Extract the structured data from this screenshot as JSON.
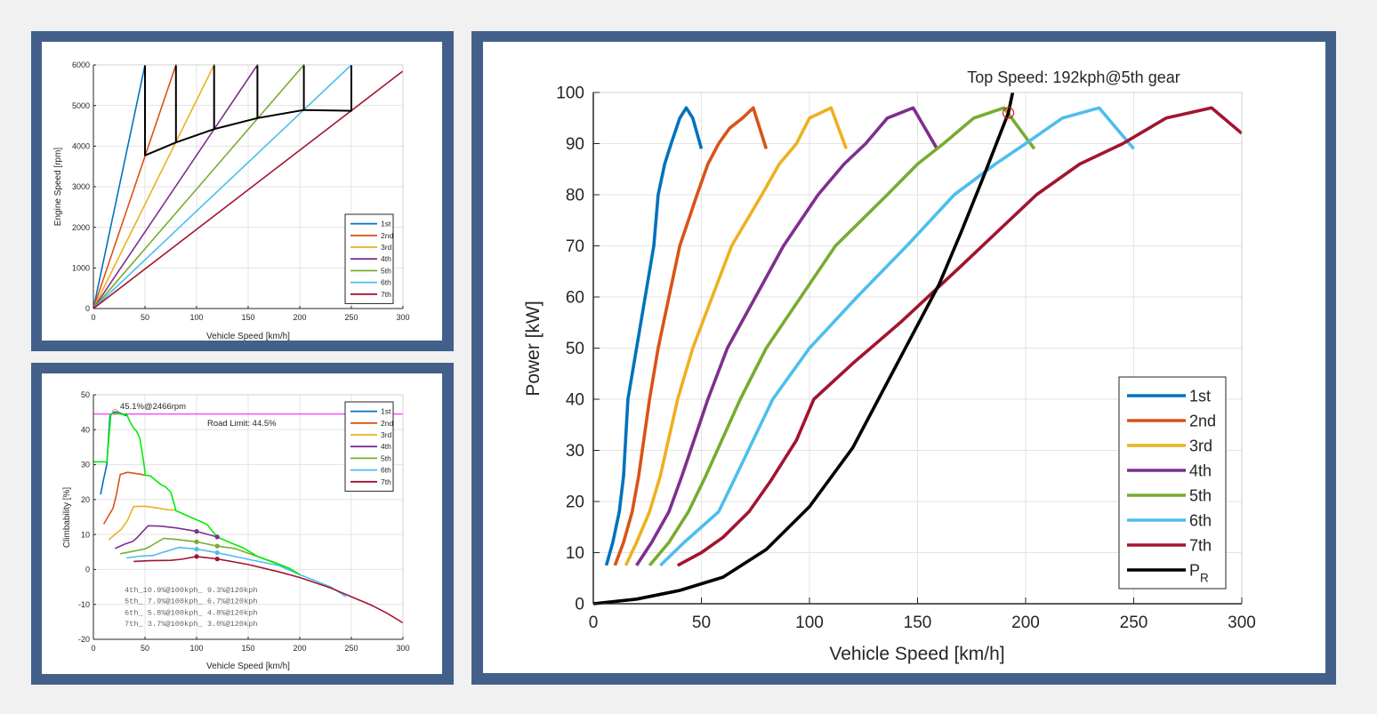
{
  "colors": {
    "1st": "#0072bd",
    "2nd": "#d95319",
    "3rd": "#edb120",
    "4th": "#7e2f8e",
    "5th": "#77ac30",
    "6th": "#4dbeee",
    "7th": "#a2142f",
    "PR": "#000000",
    "envelope": "#00ee00",
    "road_limit": "#ff33ff",
    "marker": "#ff0000"
  },
  "chart_data": [
    {
      "id": "engine-speed",
      "type": "line",
      "title": "",
      "xlabel": "Vehicle Speed [km/h]",
      "ylabel": "Engine Speed [rpm]",
      "xlim": [
        0,
        300
      ],
      "ylim": [
        0,
        6000
      ],
      "xticks": [
        0,
        50,
        100,
        150,
        200,
        250,
        300
      ],
      "yticks": [
        0,
        1000,
        2000,
        3000,
        4000,
        5000,
        6000
      ],
      "xtick_labels": [
        "0",
        "50",
        "100",
        "150",
        "200",
        "250",
        "300"
      ],
      "ytick_labels": [
        "0",
        "1000",
        "2000",
        "3000",
        "4000",
        "5000",
        "6000"
      ],
      "grid": true,
      "legend": {
        "placement": "bottom-right",
        "entries": [
          "1st",
          "2nd",
          "3rd",
          "4th",
          "5th",
          "6th",
          "7th"
        ]
      },
      "series": [
        {
          "name": "1st",
          "x": [
            0,
            50
          ],
          "y": [
            0,
            6000
          ]
        },
        {
          "name": "2nd",
          "x": [
            0,
            80
          ],
          "y": [
            0,
            6000
          ]
        },
        {
          "name": "3rd",
          "x": [
            0,
            117
          ],
          "y": [
            0,
            6000
          ]
        },
        {
          "name": "4th",
          "x": [
            0,
            159
          ],
          "y": [
            0,
            6000
          ]
        },
        {
          "name": "5th",
          "x": [
            0,
            204
          ],
          "y": [
            0,
            6000
          ]
        },
        {
          "name": "6th",
          "x": [
            0,
            250
          ],
          "y": [
            0,
            6000
          ]
        },
        {
          "name": "7th",
          "x": [
            0,
            300
          ],
          "y": [
            0,
            5850
          ]
        }
      ],
      "shift_path": {
        "name": "shift",
        "x": [
          50,
          50,
          50,
          80,
          80,
          80,
          117,
          117,
          117,
          159,
          159,
          159,
          204,
          204,
          204,
          250,
          250
        ],
        "y": [
          6000,
          3770,
          3770,
          4090,
          6000,
          4090,
          4420,
          6000,
          4420,
          4690,
          6000,
          4690,
          4890,
          6000,
          4890,
          4870,
          6000
        ]
      }
    },
    {
      "id": "climbability",
      "type": "line",
      "title": "",
      "xlabel": "Vehicle Speed [km/h]",
      "ylabel": "Climbability [%]",
      "xlim": [
        0,
        300
      ],
      "ylim": [
        -20,
        50
      ],
      "xticks": [
        0,
        50,
        100,
        150,
        200,
        250,
        300
      ],
      "yticks": [
        -20,
        -10,
        0,
        10,
        20,
        30,
        40,
        50
      ],
      "xtick_labels": [
        "0",
        "50",
        "100",
        "150",
        "200",
        "250",
        "300"
      ],
      "ytick_labels": [
        "-20",
        "-10",
        "0",
        "10",
        "20",
        "30",
        "40",
        "50"
      ],
      "grid": true,
      "legend": {
        "placement": "top-right",
        "entries": [
          "1st",
          "2nd",
          "3rd",
          "4th",
          "5th",
          "6th",
          "7th"
        ]
      },
      "road_limit": {
        "value": 44.5,
        "label": "Road Limit: 44.5%"
      },
      "peak": {
        "x": 21,
        "y": 45.1,
        "label": "45.1%@2466rpm"
      },
      "series": [
        {
          "name": "1st",
          "x": [
            7,
            10,
            13,
            16,
            20,
            24,
            28,
            32
          ],
          "y": [
            21.5,
            26,
            30,
            44,
            45.1,
            45,
            44.5,
            44
          ]
        },
        {
          "name": "2nd",
          "x": [
            10,
            15,
            19,
            22,
            26,
            33,
            45,
            50
          ],
          "y": [
            13,
            15.5,
            17.5,
            21,
            27.2,
            27.8,
            27.3,
            27
          ]
        },
        {
          "name": "3rd",
          "x": [
            15,
            22,
            27,
            33,
            39,
            50,
            60,
            72,
            80
          ],
          "y": [
            8.5,
            10.3,
            11.5,
            14,
            18,
            18.1,
            17.7,
            17.1,
            17
          ]
        },
        {
          "name": "4th",
          "x": [
            21,
            30,
            38,
            42,
            53,
            65,
            80,
            100,
            120
          ],
          "y": [
            6,
            7.2,
            8,
            9,
            12.5,
            12.4,
            11.9,
            10.9,
            9.3
          ]
        },
        {
          "name": "5th",
          "x": [
            26,
            40,
            50,
            55,
            68,
            80,
            100,
            120,
            137,
            160,
            190,
            200
          ],
          "y": [
            4.5,
            5.3,
            5.9,
            6.6,
            8.9,
            8.6,
            7.9,
            6.7,
            6,
            3.6,
            0.3,
            -1.5
          ]
        },
        {
          "name": "6th",
          "x": [
            32,
            45,
            58,
            65,
            83,
            100,
            120,
            150,
            180,
            200,
            230,
            245
          ],
          "y": [
            3.3,
            3.8,
            4,
            4.7,
            6.3,
            5.8,
            4.8,
            2.9,
            1.1,
            -1.5,
            -5,
            -7.8
          ]
        },
        {
          "name": "7th",
          "x": [
            39,
            55,
            75,
            85,
            100,
            120,
            150,
            180,
            200,
            230,
            250,
            270,
            285,
            300
          ],
          "y": [
            2.3,
            2.5,
            2.6,
            2.9,
            3.7,
            3.0,
            1.4,
            -0.7,
            -2.3,
            -5.3,
            -7.8,
            -10.3,
            -12.6,
            -15.3
          ]
        }
      ],
      "envelope": {
        "name": "envelope",
        "x": [
          0,
          13,
          17,
          21,
          25,
          29,
          32,
          35,
          39,
          42,
          45,
          48,
          50,
          50,
          55,
          60,
          65,
          70,
          75,
          79,
          80,
          90,
          100,
          105,
          110,
          120,
          130,
          145,
          160,
          175,
          190,
          200
        ],
        "y": [
          30.8,
          30.8,
          44.5,
          44.7,
          44.6,
          44.3,
          44.6,
          42.5,
          40.5,
          39.5,
          37.5,
          32,
          28,
          27,
          26.8,
          25.6,
          24.4,
          23.6,
          22.1,
          18,
          16.8,
          15.5,
          14.2,
          13.6,
          12.9,
          9.3,
          8,
          6.2,
          3.6,
          2.1,
          0.3,
          -1.5
        ]
      },
      "markers": [
        {
          "gear": "4th",
          "x": 100,
          "y": 10.9
        },
        {
          "gear": "4th",
          "x": 120,
          "y": 9.3
        },
        {
          "gear": "5th",
          "x": 100,
          "y": 7.9
        },
        {
          "gear": "5th",
          "x": 120,
          "y": 6.7
        },
        {
          "gear": "6th",
          "x": 100,
          "y": 5.8
        },
        {
          "gear": "6th",
          "x": 120,
          "y": 4.8
        },
        {
          "gear": "7th",
          "x": 100,
          "y": 3.7
        },
        {
          "gear": "7th",
          "x": 120,
          "y": 3.0
        }
      ],
      "annotations": [
        "4th_10.9%@100kph_ 9.3%@120kph",
        "5th_ 7.9%@100kph_ 6.7%@120kph",
        "6th_ 5.8%@100kph_ 4.8%@120kph",
        "7th_ 3.7%@100kph_ 3.0%@120kph"
      ]
    },
    {
      "id": "power",
      "type": "line",
      "title": "Top Speed: 192kph@5th gear",
      "xlabel": "Vehicle Speed [km/h]",
      "ylabel": "Power [kW]",
      "xlim": [
        0,
        300
      ],
      "ylim": [
        0,
        100
      ],
      "xticks": [
        0,
        50,
        100,
        150,
        200,
        250,
        300
      ],
      "yticks": [
        0,
        10,
        20,
        30,
        40,
        50,
        60,
        70,
        80,
        90,
        100
      ],
      "xtick_labels": [
        "0",
        "50",
        "100",
        "150",
        "200",
        "250",
        "300"
      ],
      "ytick_labels": [
        "0",
        "10",
        "20",
        "30",
        "40",
        "50",
        "60",
        "70",
        "80",
        "90",
        "100"
      ],
      "grid": true,
      "legend": {
        "placement": "bottom-right",
        "entries": [
          "1st",
          "2nd",
          "3rd",
          "4th",
          "5th",
          "6th",
          "7th",
          "P_R"
        ]
      },
      "top_speed": {
        "x": 192,
        "y": 96
      },
      "series": [
        {
          "name": "1st",
          "x": [
            6,
            9,
            12,
            14,
            16,
            20,
            24,
            28,
            30,
            33,
            36,
            40,
            43,
            46,
            50
          ],
          "y": [
            7.5,
            12,
            18,
            25,
            40,
            50,
            60,
            70,
            80,
            86,
            90,
            95,
            97,
            95,
            89
          ]
        },
        {
          "name": "2nd",
          "x": [
            10,
            14,
            18,
            21,
            26,
            30,
            35,
            40,
            48,
            53,
            58,
            63,
            69,
            74,
            80
          ],
          "y": [
            7.5,
            12,
            18,
            25,
            40,
            50,
            60,
            70,
            80,
            86,
            90,
            93,
            95,
            97,
            89
          ]
        },
        {
          "name": "3rd",
          "x": [
            15,
            20,
            26,
            31,
            39,
            46,
            55,
            64,
            78,
            86,
            94,
            100,
            110,
            117
          ],
          "y": [
            7.5,
            12,
            18,
            25,
            40,
            50,
            60,
            70,
            80,
            86,
            90,
            95,
            97,
            89
          ]
        },
        {
          "name": "4th",
          "x": [
            20,
            27,
            35,
            41,
            53,
            62,
            75,
            88,
            104,
            116,
            126,
            136,
            148,
            159
          ],
          "y": [
            7.5,
            12,
            18,
            25,
            40,
            50,
            60,
            70,
            80,
            86,
            90,
            95,
            97,
            89
          ]
        },
        {
          "name": "5th",
          "x": [
            26,
            35,
            44,
            52,
            68,
            80,
            96,
            112,
            136,
            150,
            162,
            176,
            190,
            204
          ],
          "y": [
            7.5,
            12,
            18,
            25,
            40,
            50,
            60,
            70,
            80,
            86,
            90,
            95,
            97,
            89
          ]
        },
        {
          "name": "6th",
          "x": [
            31,
            42,
            58,
            66,
            83,
            100,
            122,
            145,
            167,
            186,
            200,
            217,
            234,
            250
          ],
          "y": [
            7.5,
            12,
            18,
            25,
            40,
            50,
            60,
            70,
            80,
            86,
            90,
            95,
            97,
            89
          ]
        },
        {
          "name": "7th",
          "x": [
            39,
            50,
            60,
            72,
            82,
            94,
            102,
            120,
            142,
            170,
            190,
            205,
            225,
            245,
            265,
            286,
            300
          ],
          "y": [
            7.5,
            10,
            13,
            18,
            24,
            32,
            40,
            47,
            55,
            66,
            74,
            80,
            86,
            90,
            95,
            97,
            92
          ]
        },
        {
          "name": "P_R",
          "x": [
            0,
            20,
            40,
            60,
            80,
            100,
            120,
            140,
            160,
            170,
            180,
            192,
            194
          ],
          "y": [
            0,
            0.9,
            2.6,
            5.2,
            10.6,
            19.0,
            30.5,
            46.5,
            62.5,
            72.5,
            83,
            96,
            100
          ]
        }
      ]
    }
  ]
}
